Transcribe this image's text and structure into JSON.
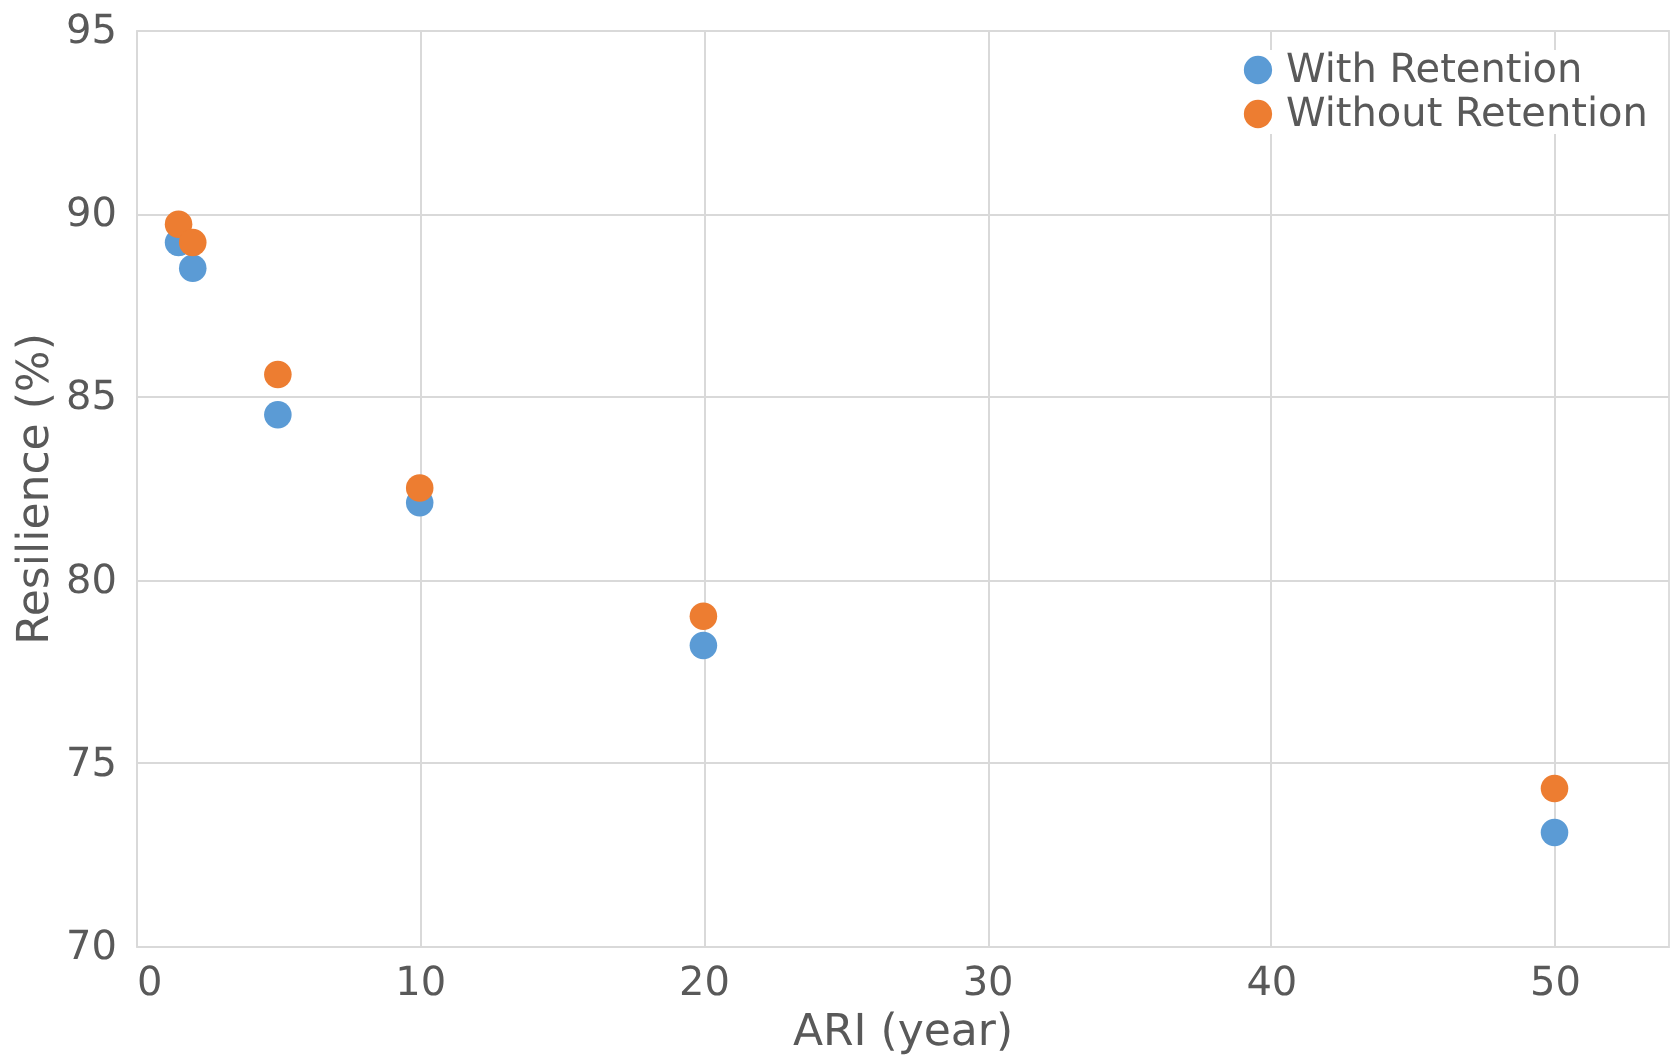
{
  "chart_data": {
    "type": "scatter",
    "xlabel": "ARI (year)",
    "ylabel": "Resilience (%)",
    "xlim": [
      0,
      54
    ],
    "xticks": [
      0,
      10,
      20,
      30,
      40,
      50
    ],
    "ylim": [
      70,
      95
    ],
    "yticks": [
      70,
      75,
      80,
      85,
      90,
      95
    ],
    "grid": true,
    "legend": "top right",
    "marker": "circle",
    "series": [
      {
        "name": "With Retention",
        "color": "#5b9bd5",
        "x": [
          1.5,
          2,
          5,
          10,
          20,
          50
        ],
        "values": [
          89.2,
          88.5,
          84.5,
          82.1,
          78.2,
          73.1
        ]
      },
      {
        "name": "Without Retention",
        "color": "#ed7d31",
        "x": [
          1.5,
          2,
          5,
          10,
          20,
          50
        ],
        "values": [
          89.7,
          89.2,
          85.6,
          82.5,
          79.0,
          74.3
        ]
      }
    ]
  }
}
